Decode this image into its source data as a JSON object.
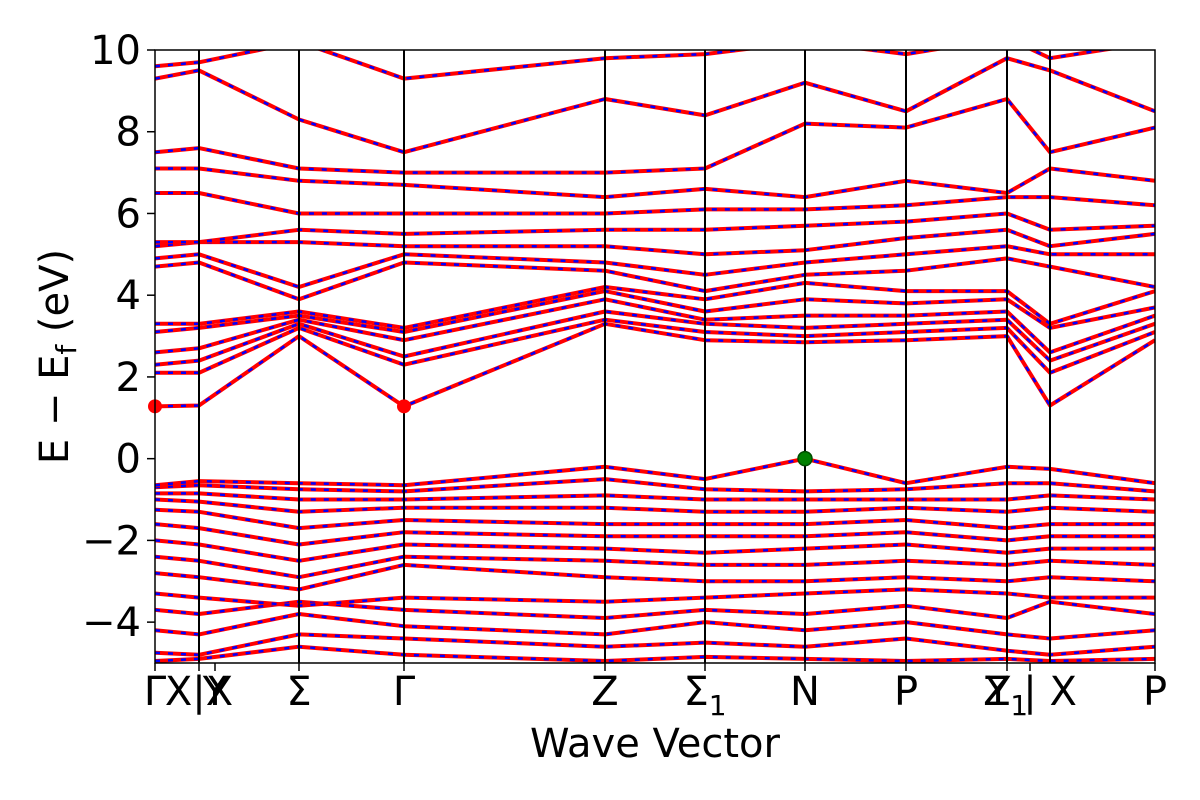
{
  "chart_data": {
    "type": "line",
    "title": "",
    "xlabel": "Wave Vector",
    "ylabel": "E − E",
    "ylabel_sub": "f",
    "ylabel_unit": " (eV)",
    "ylim": [
      -5,
      10
    ],
    "yticks": [
      {
        "value": 10,
        "label": "10"
      },
      {
        "value": 8,
        "label": "8"
      },
      {
        "value": 6,
        "label": "6"
      },
      {
        "value": 4,
        "label": "4"
      },
      {
        "value": 2,
        "label": "2"
      },
      {
        "value": 0,
        "label": "0"
      },
      {
        "value": -2,
        "label": "−2"
      },
      {
        "value": -4,
        "label": "−4"
      }
    ],
    "xlim": [
      0,
      10
    ],
    "high_symmetry_points": [
      {
        "x": 0.0,
        "label": "Γ",
        "sub": ""
      },
      {
        "x": 0.44,
        "label": "X|X",
        "sub": ""
      },
      {
        "x": 0.6,
        "label": "Y",
        "sub": ""
      },
      {
        "x": 1.44,
        "label": "Σ",
        "sub": ""
      },
      {
        "x": 2.49,
        "label": "Γ",
        "sub": ""
      },
      {
        "x": 4.5,
        "label": "Z",
        "sub": ""
      },
      {
        "x": 5.5,
        "label": "Σ",
        "sub": "1"
      },
      {
        "x": 6.5,
        "label": "N",
        "sub": ""
      },
      {
        "x": 7.51,
        "label": "P",
        "sub": ""
      },
      {
        "x": 8.52,
        "label": "Y",
        "sub": "1"
      },
      {
        "x": 8.75,
        "label": "Z | X",
        "sub": ""
      },
      {
        "x": 10.0,
        "label": "P",
        "sub": ""
      }
    ],
    "vertical_lines_x": [
      0.44,
      1.44,
      2.49,
      4.5,
      5.5,
      6.5,
      7.51,
      8.52,
      8.95
    ],
    "series_styles": [
      {
        "color": "#ff0000",
        "style": "solid",
        "description": "red band line"
      },
      {
        "color": "#0000ff",
        "style": "dashed",
        "description": "blue dashed band line"
      }
    ],
    "cbm": [
      {
        "x": 0.0,
        "y": 1.28,
        "color": "#ff0000"
      },
      {
        "x": 2.49,
        "y": 1.28,
        "color": "#ff0000"
      }
    ],
    "vbm": [
      {
        "x": 6.5,
        "y": 0.0,
        "color": "#008000"
      }
    ],
    "x_nodes": [
      0,
      0.44,
      1.44,
      2.49,
      4.5,
      5.5,
      6.5,
      7.51,
      8.52,
      8.95,
      10
    ],
    "bands": [
      [
        -4.95,
        -4.9,
        -4.6,
        -4.8,
        -4.95,
        -4.85,
        -4.9,
        -4.95,
        -4.9,
        -4.95,
        -4.9
      ],
      [
        -4.75,
        -4.8,
        -4.3,
        -4.4,
        -4.6,
        -4.5,
        -4.6,
        -4.4,
        -4.7,
        -4.8,
        -4.6
      ],
      [
        -4.2,
        -4.3,
        -3.8,
        -4.1,
        -4.3,
        -4.0,
        -4.2,
        -4.0,
        -4.3,
        -4.4,
        -4.2
      ],
      [
        -3.7,
        -3.8,
        -3.5,
        -3.7,
        -3.9,
        -3.7,
        -3.8,
        -3.6,
        -3.9,
        -3.5,
        -3.8
      ],
      [
        -3.3,
        -3.4,
        -3.6,
        -3.4,
        -3.5,
        -3.4,
        -3.3,
        -3.2,
        -3.3,
        -3.4,
        -3.4
      ],
      [
        -2.8,
        -2.9,
        -3.2,
        -2.6,
        -2.9,
        -3.0,
        -3.0,
        -2.9,
        -3.0,
        -2.9,
        -3.0
      ],
      [
        -2.4,
        -2.5,
        -2.9,
        -2.4,
        -2.5,
        -2.6,
        -2.6,
        -2.5,
        -2.6,
        -2.5,
        -2.6
      ],
      [
        -2.0,
        -2.1,
        -2.5,
        -2.1,
        -2.2,
        -2.3,
        -2.2,
        -2.1,
        -2.3,
        -2.2,
        -2.2
      ],
      [
        -1.6,
        -1.7,
        -2.1,
        -1.8,
        -1.9,
        -1.9,
        -1.9,
        -1.8,
        -2.0,
        -1.9,
        -1.9
      ],
      [
        -1.25,
        -1.3,
        -1.7,
        -1.5,
        -1.6,
        -1.6,
        -1.6,
        -1.5,
        -1.7,
        -1.6,
        -1.6
      ],
      [
        -1.0,
        -1.05,
        -1.3,
        -1.2,
        -1.2,
        -1.3,
        -1.3,
        -1.2,
        -1.3,
        -1.2,
        -1.3
      ],
      [
        -0.85,
        -0.85,
        -1.0,
        -1.0,
        -0.9,
        -1.0,
        -1.0,
        -1.0,
        -1.0,
        -0.9,
        -1.0
      ],
      [
        -0.7,
        -0.65,
        -0.75,
        -0.8,
        -0.5,
        -0.75,
        -0.8,
        -0.75,
        -0.6,
        -0.6,
        -0.8
      ],
      [
        -0.65,
        -0.55,
        -0.6,
        -0.65,
        -0.2,
        -0.5,
        0.0,
        -0.6,
        -0.2,
        -0.25,
        -0.6
      ],
      [
        1.28,
        1.3,
        3.0,
        1.28,
        3.3,
        2.9,
        2.85,
        2.9,
        3.0,
        1.3,
        2.9
      ],
      [
        2.1,
        2.1,
        3.2,
        2.3,
        3.4,
        3.1,
        3.0,
        3.1,
        3.2,
        2.1,
        3.1
      ],
      [
        2.3,
        2.4,
        3.3,
        2.5,
        3.6,
        3.3,
        3.2,
        3.3,
        3.4,
        2.4,
        3.3
      ],
      [
        2.6,
        2.7,
        3.4,
        2.9,
        3.9,
        3.4,
        3.5,
        3.5,
        3.6,
        2.6,
        3.5
      ],
      [
        3.1,
        3.2,
        3.5,
        3.1,
        4.1,
        3.6,
        3.9,
        3.8,
        3.9,
        3.2,
        3.7
      ],
      [
        3.3,
        3.3,
        3.6,
        3.2,
        4.2,
        3.9,
        4.3,
        4.1,
        4.1,
        3.3,
        4.1
      ],
      [
        4.7,
        4.8,
        3.9,
        4.8,
        4.6,
        4.1,
        4.5,
        4.6,
        4.9,
        4.7,
        4.2
      ],
      [
        4.9,
        5.0,
        4.2,
        5.0,
        4.8,
        4.5,
        4.8,
        5.0,
        5.2,
        5.0,
        5.0
      ],
      [
        5.2,
        5.3,
        5.3,
        5.2,
        5.2,
        5.0,
        5.1,
        5.4,
        5.6,
        5.2,
        5.5
      ],
      [
        5.3,
        5.3,
        5.6,
        5.5,
        5.6,
        5.6,
        5.7,
        5.8,
        6.0,
        5.6,
        5.7
      ],
      [
        6.5,
        6.5,
        6.0,
        6.0,
        6.0,
        6.1,
        6.1,
        6.2,
        6.4,
        6.4,
        6.2
      ],
      [
        7.1,
        7.1,
        6.8,
        6.7,
        6.4,
        6.6,
        6.4,
        6.8,
        6.5,
        7.1,
        6.8
      ],
      [
        7.5,
        7.6,
        7.1,
        7.0,
        7.0,
        7.1,
        8.2,
        8.1,
        8.8,
        7.5,
        8.1
      ],
      [
        9.3,
        9.5,
        8.3,
        7.5,
        8.8,
        8.4,
        9.2,
        8.5,
        9.8,
        9.5,
        8.5
      ],
      [
        9.6,
        9.7,
        10.2,
        9.3,
        9.8,
        9.9,
        10.2,
        9.9,
        10.3,
        9.8,
        10.2
      ]
    ]
  }
}
